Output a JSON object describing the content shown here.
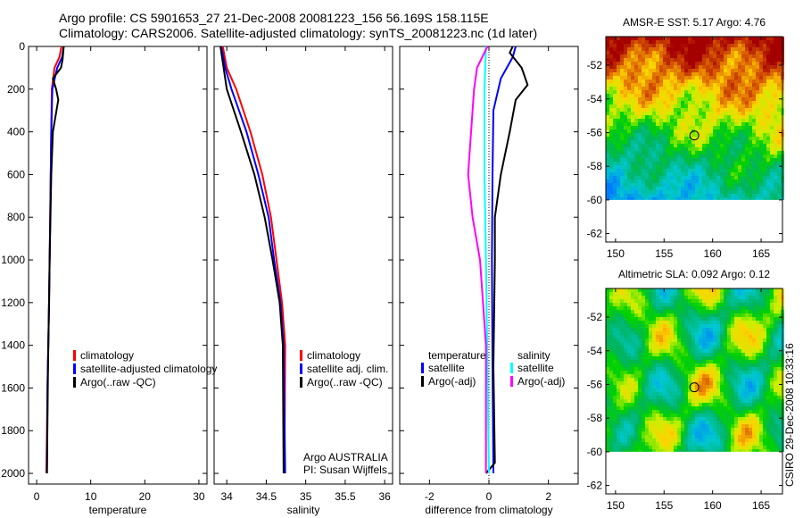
{
  "title": {
    "line1": "Argo profile: CS 5901653_27 21-Dec-2008 20081223_156 56.169S 158.115E",
    "line2": "Climatology: CARS2006. Satellite-adjusted climatology: synTS_20081223.nc (1d later)"
  },
  "stamp": "CSIRO 29-Dec-2008 10:33:16",
  "chart_data": [
    {
      "type": "line",
      "id": "temp",
      "xlabel": "temperature",
      "ylabel": "",
      "xlim": [
        -1.5,
        31.5
      ],
      "ylim": [
        2050,
        0
      ],
      "xticks": [
        0,
        10,
        20,
        30
      ],
      "yticks": [
        0,
        200,
        400,
        600,
        800,
        1000,
        1200,
        1400,
        1600,
        1800,
        2000
      ],
      "legend": [
        "climatology",
        "satellite-adjusted climatology",
        "Argo(..raw -QC)"
      ],
      "series": [
        {
          "name": "climatology",
          "color": "#ff0000",
          "depth": [
            0,
            50,
            100,
            200,
            400,
            800,
            1200,
            1600,
            2000
          ],
          "values": [
            4.6,
            4.2,
            3.3,
            2.8,
            2.7,
            2.5,
            2.3,
            2.0,
            1.8
          ]
        },
        {
          "name": "satellite-adjusted climatology",
          "color": "#0000ff",
          "depth": [
            0,
            50,
            100,
            200,
            400,
            800,
            1200,
            1600,
            2000
          ],
          "values": [
            5.0,
            4.7,
            3.8,
            2.9,
            2.7,
            2.5,
            2.3,
            2.0,
            1.9
          ]
        },
        {
          "name": "Argo(..raw -QC)",
          "color": "#000000",
          "depth": [
            0,
            60,
            100,
            150,
            200,
            250,
            400,
            600,
            1000,
            1500,
            2000
          ],
          "values": [
            5.0,
            4.8,
            4.5,
            3.0,
            3.6,
            4.0,
            3.0,
            2.7,
            2.4,
            2.1,
            1.9
          ]
        }
      ]
    },
    {
      "type": "line",
      "id": "sal",
      "xlabel": "salinity",
      "ylabel": "",
      "xlim": [
        33.84,
        36.1
      ],
      "ylim": [
        2050,
        0
      ],
      "xticks": [
        34,
        34.5,
        35,
        35.5,
        36
      ],
      "yticks": [
        0,
        200,
        400,
        600,
        800,
        1000,
        1200,
        1400,
        1600,
        1800,
        2000
      ],
      "legend": [
        "climatology",
        "satellite adj. clim.",
        "Argo(..raw -QC)"
      ],
      "annotation": [
        "Argo AUSTRALIA",
        "PI: Susan Wijffels"
      ],
      "series": [
        {
          "name": "climatology",
          "color": "#ff0000",
          "depth": [
            0,
            100,
            200,
            400,
            600,
            800,
            1000,
            1200,
            1400,
            2000
          ],
          "values": [
            33.95,
            34.0,
            34.12,
            34.3,
            34.45,
            34.56,
            34.63,
            34.7,
            34.74,
            34.73
          ]
        },
        {
          "name": "satellite adj. clim.",
          "color": "#0000ff",
          "depth": [
            0,
            100,
            200,
            400,
            600,
            800,
            1000,
            1200,
            1400,
            2000
          ],
          "values": [
            33.93,
            33.98,
            34.06,
            34.25,
            34.4,
            34.53,
            34.6,
            34.68,
            34.72,
            34.74
          ]
        },
        {
          "name": "Argo(..raw -QC)",
          "color": "#000000",
          "depth": [
            0,
            100,
            200,
            400,
            600,
            800,
            1000,
            1200,
            1400,
            2000
          ],
          "values": [
            33.92,
            33.96,
            34.0,
            34.18,
            34.35,
            34.48,
            34.58,
            34.67,
            34.71,
            34.72
          ]
        }
      ]
    },
    {
      "type": "line",
      "id": "diff",
      "xlabel": "difference from climatology",
      "ylabel": "",
      "xlim": [
        -3,
        3
      ],
      "ylim": [
        2050,
        0
      ],
      "xticks": [
        -2,
        0,
        2
      ],
      "yticks": [
        0,
        200,
        400,
        600,
        800,
        1000,
        1200,
        1400,
        1600,
        1800,
        2000
      ],
      "legend_headers": [
        "temperature",
        "salinity"
      ],
      "legend": [
        "satellite",
        "Argo(-adj)",
        "satellite",
        "Argo(-adj)"
      ],
      "series": [
        {
          "name": "temperature satellite",
          "color": "#0000ff",
          "depth": [
            0,
            50,
            150,
            300,
            600,
            1000,
            1500,
            2000
          ],
          "values": [
            0.9,
            0.8,
            0.4,
            0.15,
            0.12,
            0.1,
            0.12,
            0.15
          ]
        },
        {
          "name": "temperature Argo(-adj)",
          "color": "#000000",
          "depth": [
            0,
            30,
            100,
            180,
            250,
            400,
            600,
            800,
            1000,
            1500,
            1950,
            2000
          ],
          "values": [
            0.8,
            0.7,
            1.1,
            1.3,
            0.9,
            0.7,
            0.4,
            0.2,
            0.2,
            0.15,
            0.2,
            -0.1
          ]
        },
        {
          "name": "salinity satellite",
          "color": "#00ffff",
          "depth": [
            0,
            200,
            600,
            1000,
            1500,
            2000
          ],
          "values": [
            -0.1,
            -0.15,
            -0.15,
            -0.1,
            -0.05,
            0.0
          ]
        },
        {
          "name": "salinity Argo(-adj)",
          "color": "#ff00ff",
          "depth": [
            0,
            100,
            200,
            400,
            600,
            800,
            1000,
            1400,
            2000
          ],
          "values": [
            -0.05,
            -0.4,
            -0.5,
            -0.6,
            -0.7,
            -0.55,
            -0.3,
            -0.1,
            -0.1
          ]
        }
      ]
    },
    {
      "type": "heatmap",
      "id": "sst",
      "title": "AMSR-E SST: 5.17 Argo: 4.76",
      "xlim": [
        149,
        167.2
      ],
      "ylim": [
        -62.5,
        -50.3
      ],
      "xticks": [
        150,
        155,
        160,
        165
      ],
      "yticks": [
        -52,
        -54,
        -56,
        -58,
        -60,
        -62
      ],
      "marker": {
        "lon": 158.115,
        "lat": -56.169
      }
    },
    {
      "type": "heatmap",
      "id": "sla",
      "title": "Altimetric SLA: 0.092 Argo: 0.12",
      "xlim": [
        149,
        167.2
      ],
      "ylim": [
        -62.5,
        -50.3
      ],
      "xticks": [
        150,
        155,
        160,
        165
      ],
      "yticks": [
        -52,
        -54,
        -56,
        -58,
        -60,
        -62
      ],
      "marker": {
        "lon": 158.115,
        "lat": -56.169
      }
    }
  ]
}
